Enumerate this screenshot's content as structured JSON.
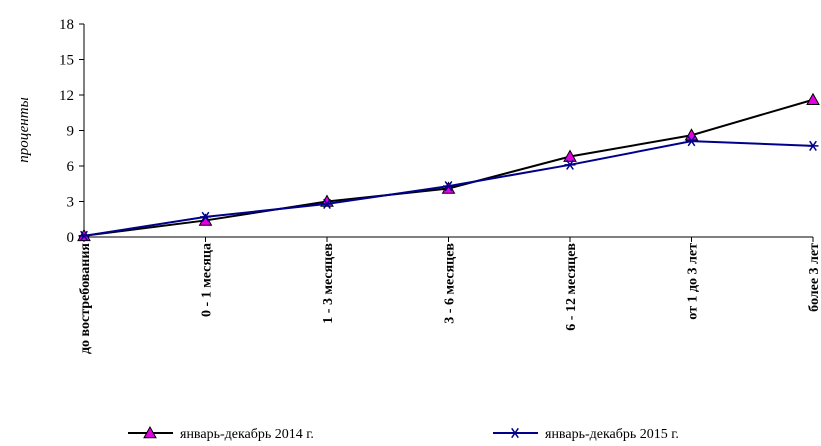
{
  "chart_data": {
    "type": "line",
    "categories": [
      "до востребования",
      "0 - 1 месяца",
      "1 - 3 месяцев",
      "3 - 6 месяцев",
      "6 - 12 месяцев",
      "от 1 до 3 лет",
      "более 3 лет"
    ],
    "series": [
      {
        "name": "январь-декабрь 2014 г.",
        "values": [
          0.1,
          1.4,
          3.0,
          4.1,
          6.8,
          8.6,
          11.6
        ],
        "color": "#000000",
        "marker": "triangle",
        "marker_fill": "#e000e0"
      },
      {
        "name": "январь-декабрь 2015 г.",
        "values": [
          0.1,
          1.7,
          2.8,
          4.3,
          6.1,
          8.1,
          7.7
        ],
        "color": "#00008b",
        "marker": "asterisk",
        "marker_fill": "#00008b"
      }
    ],
    "title": "",
    "xlabel": "",
    "ylabel": "проценты",
    "ylim": [
      0,
      18
    ],
    "yticks": [
      "0",
      "3",
      "6",
      "9",
      "12",
      "15",
      "18"
    ],
    "grid": false,
    "legend_position": "bottom"
  }
}
